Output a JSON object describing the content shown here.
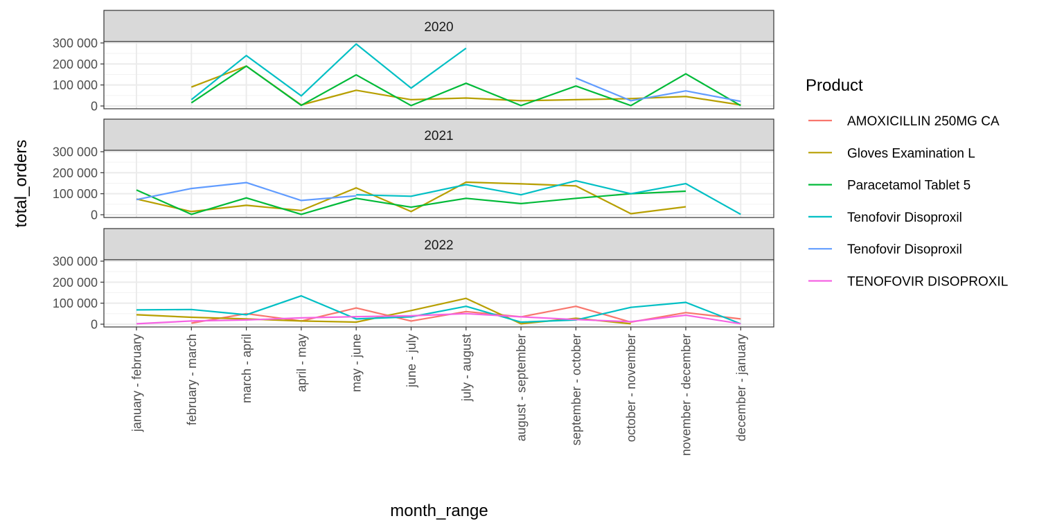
{
  "chart_data": {
    "type": "line",
    "xlabel": "month_range",
    "ylabel": "total_orders",
    "categories": [
      "january - february",
      "february - march",
      "march - april",
      "april - may",
      "may - june",
      "june - july",
      "july - august",
      "august - september",
      "september - october",
      "october - november",
      "november - december",
      "december - january"
    ],
    "ylim": [
      0,
      300000
    ],
    "yticks": [
      0,
      100000,
      200000,
      300000
    ],
    "ytick_labels": [
      "0",
      "100 000",
      "200 000",
      "300 000"
    ],
    "grid": true,
    "legend": {
      "title": "Product",
      "position": "right",
      "entries": [
        {
          "label": "AMOXICILLIN 250MG CA",
          "color": "#F8766D"
        },
        {
          "label": "Gloves Examination L",
          "color": "#B79F00"
        },
        {
          "label": "Paracetamol Tablet 5",
          "color": "#00BA38"
        },
        {
          "label": "Tenofovir Disoproxil",
          "color": "#00BFC4"
        },
        {
          "label": "Tenofovir Disoproxil",
          "color": "#619CFF"
        },
        {
          "label": "TENOFOVIR DISOPROXIL",
          "color": "#F564E3"
        }
      ]
    },
    "panels": [
      {
        "label": "2020",
        "series": [
          {
            "product_index": 1,
            "values": [
              null,
              90000,
              190000,
              5000,
              75000,
              30000,
              38000,
              25000,
              30000,
              35000,
              45000,
              5000
            ]
          },
          {
            "product_index": 2,
            "values": [
              null,
              15000,
              190000,
              3000,
              148000,
              2000,
              108000,
              2000,
              95000,
              2000,
              153000,
              2000
            ]
          },
          {
            "product_index": 3,
            "values": [
              null,
              30000,
              240000,
              48000,
              295000,
              85000,
              275000,
              null,
              null,
              null,
              null,
              null
            ]
          },
          {
            "product_index": 4,
            "values": [
              null,
              null,
              null,
              null,
              null,
              null,
              null,
              null,
              133000,
              25000,
              72000,
              22000
            ]
          }
        ]
      },
      {
        "label": "2021",
        "series": [
          {
            "product_index": 1,
            "values": [
              75000,
              15000,
              45000,
              20000,
              128000,
              15000,
              155000,
              147000,
              137000,
              5000,
              38000,
              null
            ]
          },
          {
            "product_index": 2,
            "values": [
              118000,
              2000,
              80000,
              2000,
              78000,
              36000,
              78000,
              53000,
              78000,
              100000,
              112000,
              null
            ]
          },
          {
            "product_index": 3,
            "values": [
              null,
              null,
              null,
              null,
              95000,
              88000,
              143000,
              95000,
              162000,
              100000,
              148000,
              2000
            ]
          },
          {
            "product_index": 4,
            "values": [
              72000,
              125000,
              153000,
              68000,
              90000,
              null,
              null,
              null,
              null,
              null,
              null,
              null
            ]
          }
        ]
      },
      {
        "label": "2022",
        "series": [
          {
            "product_index": 0,
            "values": [
              null,
              5000,
              50000,
              15000,
              77000,
              15000,
              60000,
              35000,
              85000,
              10000,
              55000,
              25000
            ]
          },
          {
            "product_index": 1,
            "values": [
              45000,
              33000,
              25000,
              15000,
              10000,
              65000,
              123000,
              2000,
              28000,
              2000,
              null,
              null
            ]
          },
          {
            "product_index": 3,
            "values": [
              68000,
              70000,
              45000,
              135000,
              25000,
              35000,
              85000,
              10000,
              20000,
              80000,
              104000,
              2000
            ]
          },
          {
            "product_index": 5,
            "values": [
              2000,
              15000,
              20000,
              30000,
              36000,
              40000,
              50000,
              35000,
              22000,
              12000,
              43000,
              2000
            ]
          }
        ]
      }
    ]
  }
}
